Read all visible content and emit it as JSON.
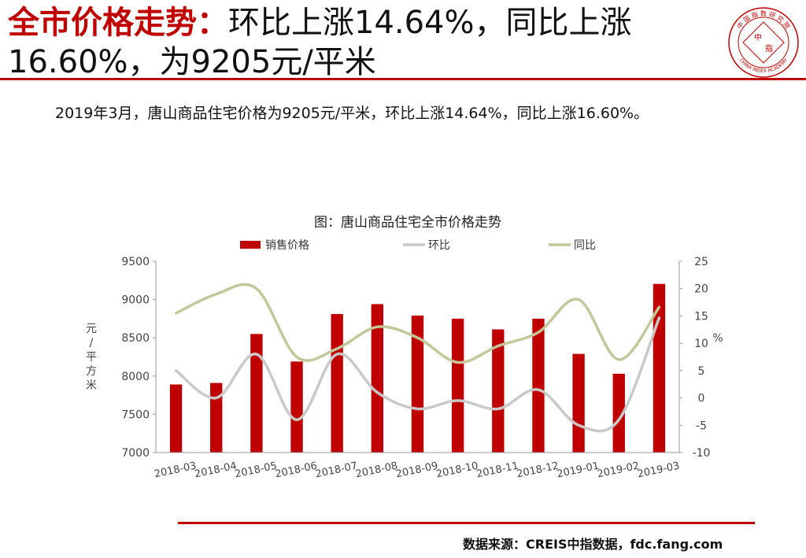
{
  "header": {
    "title_highlight": "全市价格走势：",
    "title_rest": "环比上涨14.64%，同比上涨16.60%，为9205元/平米"
  },
  "logo": {
    "top_text": "中 国 指 数 研 究 院",
    "center_left": "中",
    "center_right": "指",
    "bottom_text": "CHINA INDEX ACADEMY",
    "color": "#c00000"
  },
  "summary": "2019年3月，唐山商品住宅价格为9205元/平米，环比上涨14.64%，同比上涨16.60%。",
  "source": "数据来源：CREIS中指数据，fdc.fang.com",
  "chart_data": {
    "type": "bar",
    "title": "图：唐山商品住宅全市价格走势",
    "categories": [
      "2018-03",
      "2018-04",
      "2018-05",
      "2018-06",
      "2018-07",
      "2018-08",
      "2018-09",
      "2018-10",
      "2018-11",
      "2018-12",
      "2019-01",
      "2019-02",
      "2019-03"
    ],
    "series": [
      {
        "name": "销售价格",
        "kind": "bar",
        "axis": "left",
        "color": "#c00000",
        "values": [
          7890,
          7910,
          8550,
          8190,
          8810,
          8940,
          8790,
          8750,
          8610,
          8750,
          8290,
          8030,
          9205
        ]
      },
      {
        "name": "环比",
        "kind": "line",
        "axis": "right",
        "color": "#c9c9c9",
        "values": [
          5,
          0,
          8,
          -4,
          8,
          1,
          -2,
          -0.5,
          -2,
          1.5,
          -5,
          -4,
          14.64
        ]
      },
      {
        "name": "同比",
        "kind": "line",
        "axis": "right",
        "color": "#c4c79a",
        "values": [
          15.5,
          19,
          20,
          7.5,
          9,
          13,
          11,
          6.5,
          9.5,
          12,
          18,
          7,
          16.6
        ]
      }
    ],
    "ylabel": "元/平方米",
    "y2label": "%",
    "ylim": [
      7000,
      9500
    ],
    "y2lim": [
      -10,
      25
    ],
    "yticks": [
      "7000",
      "7500",
      "8000",
      "8500",
      "9000",
      "9500"
    ],
    "y2ticks": [
      "-10",
      "-5",
      "0",
      "5",
      "10",
      "15",
      "20",
      "25"
    ],
    "legend": "top",
    "grid": false
  }
}
